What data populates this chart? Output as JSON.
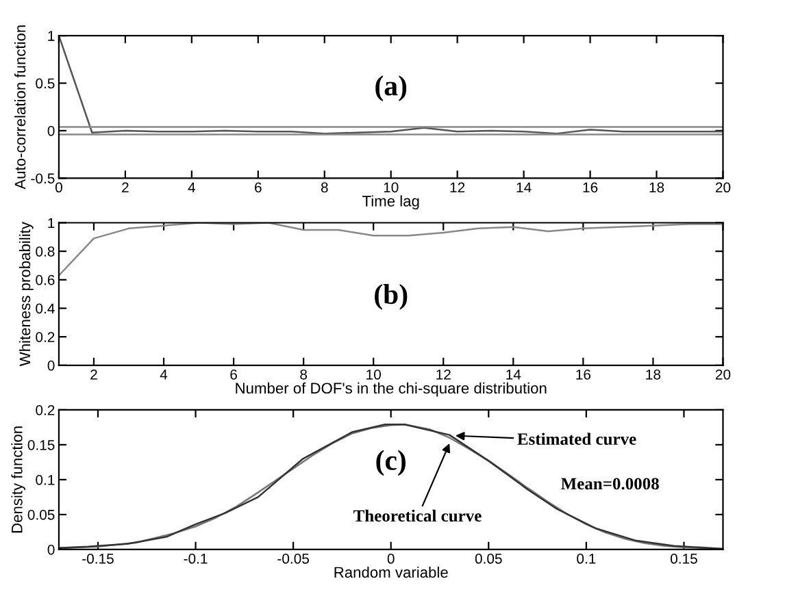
{
  "chart_data": [
    {
      "type": "line",
      "xlabel": "Time lag",
      "ylabel": "Auto-correlation function",
      "annotations": [
        "(a)"
      ],
      "x": [
        0,
        1,
        2,
        3,
        4,
        5,
        6,
        7,
        8,
        9,
        10,
        11,
        12,
        13,
        14,
        15,
        16,
        17,
        18,
        19,
        20
      ],
      "series": [
        {
          "color": "#555555",
          "values": [
            1,
            -0.02,
            0,
            -0.01,
            -0.01,
            0,
            -0.01,
            -0.01,
            -0.03,
            -0.02,
            -0.01,
            0.03,
            -0.01,
            0,
            -0.01,
            -0.03,
            0.01,
            -0.01,
            -0.01,
            -0.01,
            -0.01
          ]
        }
      ],
      "ref_lines": [
        {
          "axis": "y",
          "value": 0.04,
          "color": "#888888"
        },
        {
          "axis": "y",
          "value": -0.04,
          "color": "#888888"
        }
      ],
      "xlim": [
        0,
        20
      ],
      "xticks": [
        0,
        2,
        4,
        6,
        8,
        10,
        12,
        14,
        16,
        18,
        20
      ],
      "ylim": [
        -0.5,
        1
      ],
      "yticks": [
        -0.5,
        0,
        0.5,
        1
      ]
    },
    {
      "type": "line",
      "xlabel": "Number of DOF's in the chi-square distribution",
      "ylabel": "Whiteness probability",
      "annotations": [
        "(b)"
      ],
      "x": [
        1,
        2,
        3,
        4,
        5,
        6,
        7,
        8,
        9,
        10,
        11,
        12,
        13,
        14,
        15,
        16,
        17,
        18,
        19,
        20
      ],
      "series": [
        {
          "color": "#888888",
          "values": [
            0.63,
            0.89,
            0.96,
            0.98,
            1.0,
            0.99,
            1.0,
            0.95,
            0.95,
            0.91,
            0.91,
            0.93,
            0.96,
            0.97,
            0.94,
            0.96,
            0.97,
            0.98,
            0.99,
            0.99
          ]
        }
      ],
      "xlim": [
        1,
        20
      ],
      "xticks": [
        2,
        4,
        6,
        8,
        10,
        12,
        14,
        16,
        18,
        20
      ],
      "ylim": [
        0,
        1
      ],
      "yticks": [
        0,
        0.2,
        0.4,
        0.6,
        0.8,
        1
      ]
    },
    {
      "type": "line",
      "xlabel": "Random variable",
      "ylabel": "Density function",
      "annotations": [
        "(c)",
        "Mean=0.0008",
        {
          "text": "Estimated curve",
          "x": 0.033,
          "y": 0.163
        },
        {
          "text": "Theoretical curve",
          "x": 0.03,
          "y": 0.152
        }
      ],
      "series": [
        {
          "color": "#777777",
          "x": [
            -0.17,
            -0.15,
            -0.13,
            -0.11,
            -0.1,
            -0.09,
            -0.08,
            -0.07,
            -0.06,
            -0.05,
            -0.04,
            -0.03,
            -0.02,
            -0.01,
            0,
            0.007,
            0.02,
            0.03,
            0.04,
            0.05,
            0.06,
            0.07,
            0.08,
            0.09,
            0.1,
            0.11,
            0.12,
            0.13,
            0.14,
            0.15,
            0.17
          ],
          "values": [
            0.002,
            0.004,
            0.01,
            0.024,
            0.033,
            0.045,
            0.06,
            0.078,
            0.097,
            0.116,
            0.135,
            0.152,
            0.166,
            0.174,
            0.178,
            0.179,
            0.172,
            0.16,
            0.144,
            0.127,
            0.108,
            0.088,
            0.069,
            0.051,
            0.036,
            0.024,
            0.015,
            0.009,
            0.005,
            0.003,
            0.001
          ]
        },
        {
          "color": "#333333",
          "x": [
            -0.17,
            -0.155,
            -0.135,
            -0.115,
            -0.1,
            -0.085,
            -0.068,
            -0.045,
            -0.02,
            -0.003,
            0.007,
            0.03,
            0.05,
            0.07,
            0.085,
            0.105,
            0.125,
            0.145,
            0.17
          ],
          "values": [
            0.002,
            0.004,
            0.008,
            0.018,
            0.036,
            0.052,
            0.075,
            0.13,
            0.168,
            0.179,
            0.179,
            0.164,
            0.127,
            0.086,
            0.058,
            0.03,
            0.013,
            0.005,
            0.001
          ]
        }
      ],
      "xlim": [
        -0.17,
        0.17
      ],
      "xticks": [
        -0.15,
        -0.1,
        -0.05,
        0,
        0.05,
        0.1,
        0.15
      ],
      "ylim": [
        0,
        0.2
      ],
      "yticks": [
        0,
        0.05,
        0.1,
        0.15,
        0.2
      ]
    }
  ]
}
